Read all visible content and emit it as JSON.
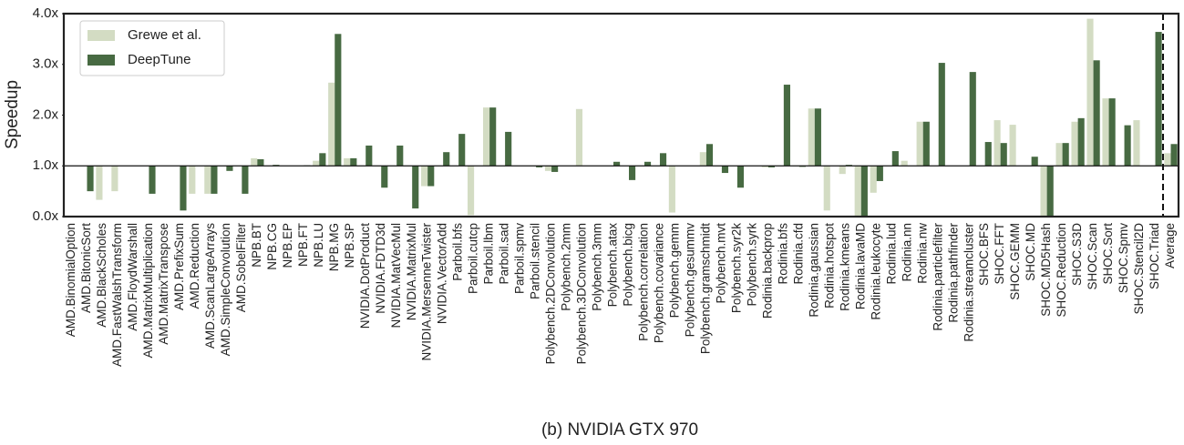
{
  "chart_data": {
    "type": "bar",
    "title": "(b) NVIDIA GTX 970",
    "ylabel": "Speedup",
    "categories": [
      "AMD.BinomialOption",
      "AMD.BitonicSort",
      "AMD.BlackScholes",
      "AMD.FastWalshTransform",
      "AMD.FloydWarshall",
      "AMD.MatrixMultiplication",
      "AMD.MatrixTranspose",
      "AMD.PrefixSum",
      "AMD.Reduction",
      "AMD.ScanLargeArrays",
      "AMD.SimpleConvolution",
      "AMD.SobelFilter",
      "NPB.BT",
      "NPB.CG",
      "NPB.EP",
      "NPB.FT",
      "NPB.LU",
      "NPB.MG",
      "NPB.SP",
      "NVIDIA.DotProduct",
      "NVIDIA.FDTD3d",
      "NVIDIA.MatVecMul",
      "NVIDIA.MatrixMul",
      "NVIDIA.MersenneTwister",
      "NVIDIA.VectorAdd",
      "Parboil.bfs",
      "Parboil.cutcp",
      "Parboil.lbm",
      "Parboil.sad",
      "Parboil.spmv",
      "Parboil.stencil",
      "Polybench.2DConvolution",
      "Polybench.2mm",
      "Polybench.3DConvolution",
      "Polybench.3mm",
      "Polybench.atax",
      "Polybench.bicg",
      "Polybench.correlation",
      "Polybench.covariance",
      "Polybench.gemm",
      "Polybench.gesummv",
      "Polybench.gramschmidt",
      "Polybench.mvt",
      "Polybench.syr2k",
      "Polybench.syrk",
      "Rodinia.backprop",
      "Rodinia.bfs",
      "Rodinia.cfd",
      "Rodinia.gaussian",
      "Rodinia.hotspot",
      "Rodinia.kmeans",
      "Rodinia.lavaMD",
      "Rodinia.leukocyte",
      "Rodinia.lud",
      "Rodinia.nn",
      "Rodinia.nw",
      "Rodinia.particlefilter",
      "Rodinia.pathfinder",
      "Rodinia.streamcluster",
      "SHOC.BFS",
      "SHOC.FFT",
      "SHOC.GEMM",
      "SHOC.MD",
      "SHOC.MD5Hash",
      "SHOC.Reduction",
      "SHOC.S3D",
      "SHOC.Scan",
      "SHOC.Sort",
      "SHOC.Spmv",
      "SHOC.Stencil2D",
      "SHOC.Triad",
      "Average"
    ],
    "series": [
      {
        "name": "Grewe et al.",
        "color": "#d3dcc3",
        "values": [
          1.0,
          1.0,
          0.33,
          0.5,
          1.0,
          1.0,
          1.0,
          1.0,
          0.45,
          0.45,
          1.0,
          1.0,
          1.15,
          1.0,
          1.0,
          1.0,
          1.1,
          2.64,
          1.15,
          1.0,
          1.0,
          1.0,
          1.0,
          0.6,
          1.0,
          1.0,
          0.03,
          2.15,
          1.0,
          1.0,
          0.99,
          0.9,
          1.0,
          2.12,
          1.0,
          1.0,
          1.0,
          1.0,
          1.0,
          0.08,
          1.0,
          1.27,
          1.0,
          1.0,
          1.0,
          0.97,
          1.0,
          0.99,
          2.13,
          0.12,
          0.84,
          0.0,
          0.47,
          1.0,
          1.1,
          1.87,
          1.0,
          1.0,
          1.0,
          1.0,
          1.9,
          1.81,
          1.0,
          0.0,
          1.45,
          1.87,
          3.9,
          2.33,
          1.0,
          1.9,
          1.0,
          1.25
        ]
      },
      {
        "name": "DeepTune",
        "color": "#476a42",
        "values": [
          1.0,
          0.5,
          1.0,
          1.0,
          1.0,
          0.45,
          1.0,
          0.12,
          1.0,
          0.45,
          0.9,
          0.45,
          1.13,
          1.02,
          1.0,
          1.01,
          1.25,
          3.6,
          1.15,
          1.4,
          0.57,
          1.4,
          0.16,
          0.6,
          1.27,
          1.63,
          1.0,
          2.15,
          1.67,
          1.0,
          0.97,
          0.88,
          1.0,
          1.0,
          1.0,
          1.08,
          0.72,
          1.08,
          1.25,
          1.0,
          1.0,
          1.43,
          0.86,
          0.57,
          1.0,
          0.97,
          2.6,
          0.98,
          2.13,
          1.0,
          1.02,
          0.0,
          0.7,
          1.29,
          1.0,
          1.87,
          3.03,
          1.0,
          2.85,
          1.47,
          1.45,
          1.0,
          1.18,
          0.0,
          1.45,
          1.94,
          3.08,
          2.33,
          1.8,
          1.0,
          3.64,
          1.43
        ]
      }
    ],
    "baseline": 1,
    "ylim": [
      0,
      4
    ],
    "yticks": [
      {
        "value": 0,
        "label": "0.0x"
      },
      {
        "value": 1,
        "label": "1.0x"
      },
      {
        "value": 2,
        "label": "2.0x"
      },
      {
        "value": 3,
        "label": "3.0x"
      },
      {
        "value": 4,
        "label": "4.0x"
      }
    ],
    "legend": "upper left"
  }
}
